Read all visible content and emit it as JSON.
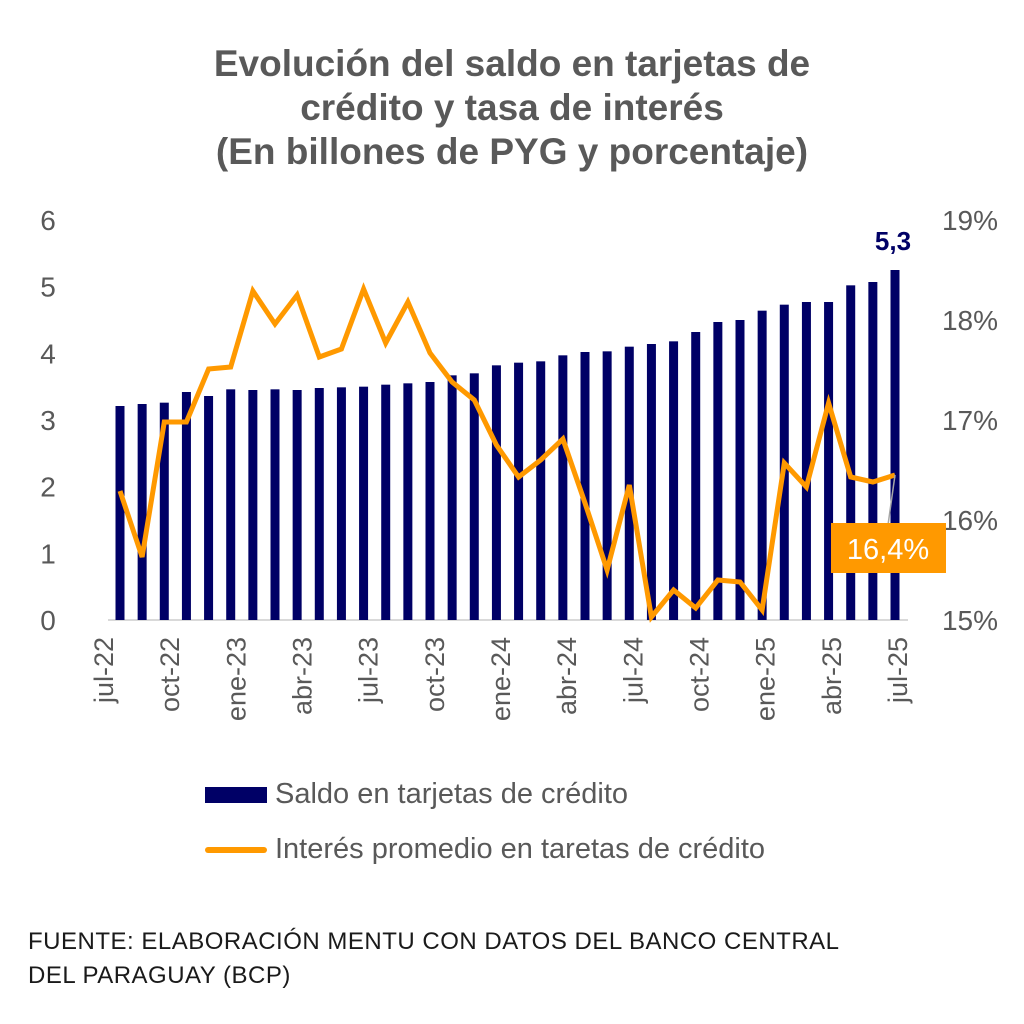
{
  "chart_data": {
    "type": "bar",
    "title": [
      "Evolución del saldo en tarjetas de",
      "crédito y tasa de interés",
      "(En billones de PYG y porcentaje)"
    ],
    "x_tick_labels": [
      "jul-22",
      "oct-22",
      "ene-23",
      "abr-23",
      "jul-23",
      "oct-23",
      "ene-24",
      "abr-24",
      "jul-24",
      "oct-24",
      "ene-25",
      "abr-25",
      "jul-25"
    ],
    "left_axis": {
      "ylim": [
        0,
        6
      ],
      "ticks": [
        "0",
        "1",
        "2",
        "3",
        "4",
        "5",
        "6"
      ]
    },
    "right_axis": {
      "ylim": [
        15,
        19
      ],
      "ticks": [
        "15%",
        "16%",
        "17%",
        "18%",
        "19%"
      ]
    },
    "series": [
      {
        "name": "Saldo en tarjetas de crédito",
        "type": "bar",
        "axis": "left",
        "color": "#000066",
        "values": [
          3.21,
          3.24,
          3.26,
          3.42,
          3.36,
          3.46,
          3.45,
          3.46,
          3.45,
          3.48,
          3.49,
          3.5,
          3.53,
          3.55,
          3.57,
          3.67,
          3.7,
          3.82,
          3.86,
          3.88,
          3.97,
          4.02,
          4.03,
          4.1,
          4.14,
          4.18,
          4.32,
          4.47,
          4.5,
          4.64,
          4.73,
          4.77,
          4.77,
          5.02,
          5.07,
          5.25
        ],
        "last_label": "5,3"
      },
      {
        "name": "Interés promedio en taretas de crédito",
        "type": "line",
        "axis": "right",
        "color": "#FF9900",
        "values": [
          16.29,
          15.63,
          16.98,
          16.98,
          17.51,
          17.53,
          18.29,
          17.96,
          18.25,
          17.63,
          17.71,
          18.31,
          17.77,
          18.18,
          17.67,
          17.38,
          17.2,
          16.75,
          16.43,
          16.6,
          16.81,
          16.17,
          15.5,
          16.35,
          15.03,
          15.3,
          15.12,
          15.4,
          15.38,
          15.1,
          16.57,
          16.33,
          17.17,
          16.43,
          16.38,
          16.45
        ],
        "last_label": "16,4%"
      }
    ],
    "legend_placement": "bottom"
  },
  "footer": [
    "FUENTE: ELABORACIÓN MENTU CON DATOS DEL BANCO CENTRAL",
    "DEL PARAGUAY (BCP)"
  ]
}
